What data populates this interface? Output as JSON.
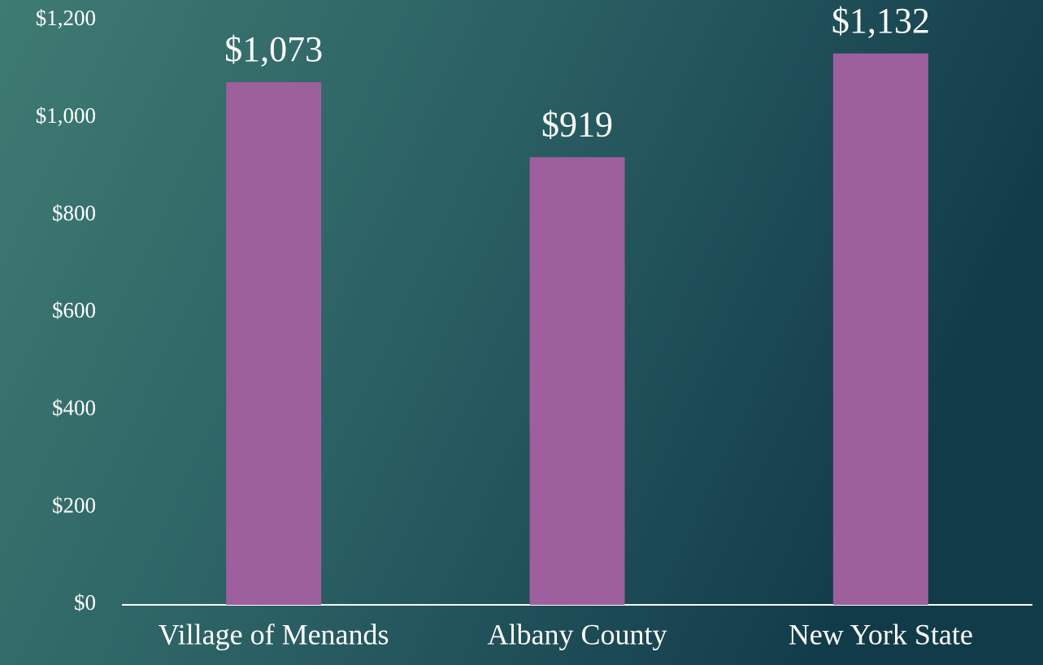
{
  "chart_data": {
    "type": "bar",
    "categories": [
      "Village of Menands",
      "Albany County",
      "New York State"
    ],
    "values": [
      1073,
      919,
      1132
    ],
    "value_labels": [
      "$1,073",
      "$919",
      "$1,132"
    ],
    "color": "#9e5f9d",
    "ylim": [
      0,
      1200
    ],
    "yticks": [
      {
        "value": 0,
        "label": "$0"
      },
      {
        "value": 200,
        "label": "$200"
      },
      {
        "value": 400,
        "label": "$400"
      },
      {
        "value": 600,
        "label": "$600"
      },
      {
        "value": 800,
        "label": "$800"
      },
      {
        "value": 1000,
        "label": "$1,000"
      },
      {
        "value": 1200,
        "label": "$1,200"
      }
    ],
    "grid": false
  }
}
